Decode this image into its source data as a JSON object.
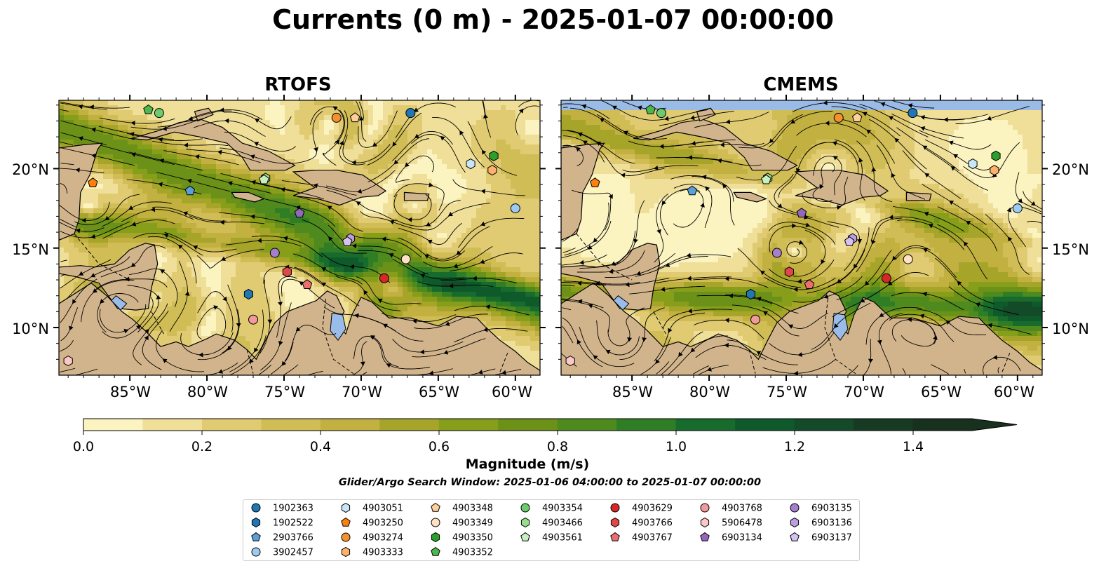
{
  "title": "Currents (0 m) - 2025-01-07 00:00:00",
  "panels": [
    {
      "name": "rtofs",
      "title": "RTOFS"
    },
    {
      "name": "cmems",
      "title": "CMEMS"
    }
  ],
  "lon_ticks": [
    "85°W",
    "80°W",
    "75°W",
    "70°W",
    "65°W",
    "60°W"
  ],
  "lat_ticks": [
    "20°N",
    "15°N",
    "10°N"
  ],
  "colorbar": {
    "label": "Magnitude (m/s)",
    "ticks": [
      "0.0",
      "0.2",
      "0.4",
      "0.6",
      "0.8",
      "1.0",
      "1.2",
      "1.4"
    ],
    "min": 0.0,
    "max": 1.5,
    "extend": "max",
    "colors": [
      "#fbf3c0",
      "#efdf98",
      "#e0cb72",
      "#d1bd55",
      "#c2b140",
      "#a6a52a",
      "#879e1a",
      "#6b9118",
      "#4e8a1e",
      "#2f7d25",
      "#176b2c",
      "#0f5a2a",
      "#134a28",
      "#163b22",
      "#18301e"
    ]
  },
  "subtitle": "Glider/Argo Search Window: 2025-01-06 04:00:00 to 2025-01-07 00:00:00",
  "colors": {
    "land": "#d2b48c",
    "water_land": "#9abce8",
    "top_band": "#9abbe6"
  },
  "legend": [
    {
      "id": "1902363",
      "shape": "circle",
      "color": "#1f77b4"
    },
    {
      "id": "1902522",
      "shape": "hexagon",
      "color": "#1f77b4"
    },
    {
      "id": "2903766",
      "shape": "pentagon",
      "color": "#5a9fd8"
    },
    {
      "id": "3902457",
      "shape": "circle",
      "color": "#9ccaf0"
    },
    {
      "id": "4903051",
      "shape": "hexagon",
      "color": "#c8e6f8"
    },
    {
      "id": "4903250",
      "shape": "pentagon",
      "color": "#ff7f0e"
    },
    {
      "id": "4903274",
      "shape": "circle",
      "color": "#f5902e"
    },
    {
      "id": "4903333",
      "shape": "hexagon",
      "color": "#ffb06a"
    },
    {
      "id": "4903348",
      "shape": "pentagon",
      "color": "#ffcf9a"
    },
    {
      "id": "4903349",
      "shape": "circle",
      "color": "#ffe2c4"
    },
    {
      "id": "4903350",
      "shape": "hexagon",
      "color": "#2ca02c"
    },
    {
      "id": "4903352",
      "shape": "pentagon",
      "color": "#4cb84c"
    },
    {
      "id": "4903354",
      "shape": "circle",
      "color": "#6ccb6c"
    },
    {
      "id": "4903466",
      "shape": "hexagon",
      "color": "#98df8a"
    },
    {
      "id": "4903561",
      "shape": "pentagon",
      "color": "#c6f0c0"
    },
    {
      "id": "4903629",
      "shape": "circle",
      "color": "#d62728"
    },
    {
      "id": "4903766",
      "shape": "hexagon",
      "color": "#e04848"
    },
    {
      "id": "4903767",
      "shape": "pentagon",
      "color": "#ec6f6f"
    },
    {
      "id": "4903768",
      "shape": "circle",
      "color": "#f09a9a"
    },
    {
      "id": "5906478",
      "shape": "hexagon",
      "color": "#fbc8c8"
    },
    {
      "id": "6903134",
      "shape": "pentagon",
      "color": "#9467bd"
    },
    {
      "id": "6903135",
      "shape": "circle",
      "color": "#a57fce"
    },
    {
      "id": "6903136",
      "shape": "hexagon",
      "color": "#bc9ee0"
    },
    {
      "id": "6903137",
      "shape": "pentagon",
      "color": "#d6c2f0"
    }
  ]
}
